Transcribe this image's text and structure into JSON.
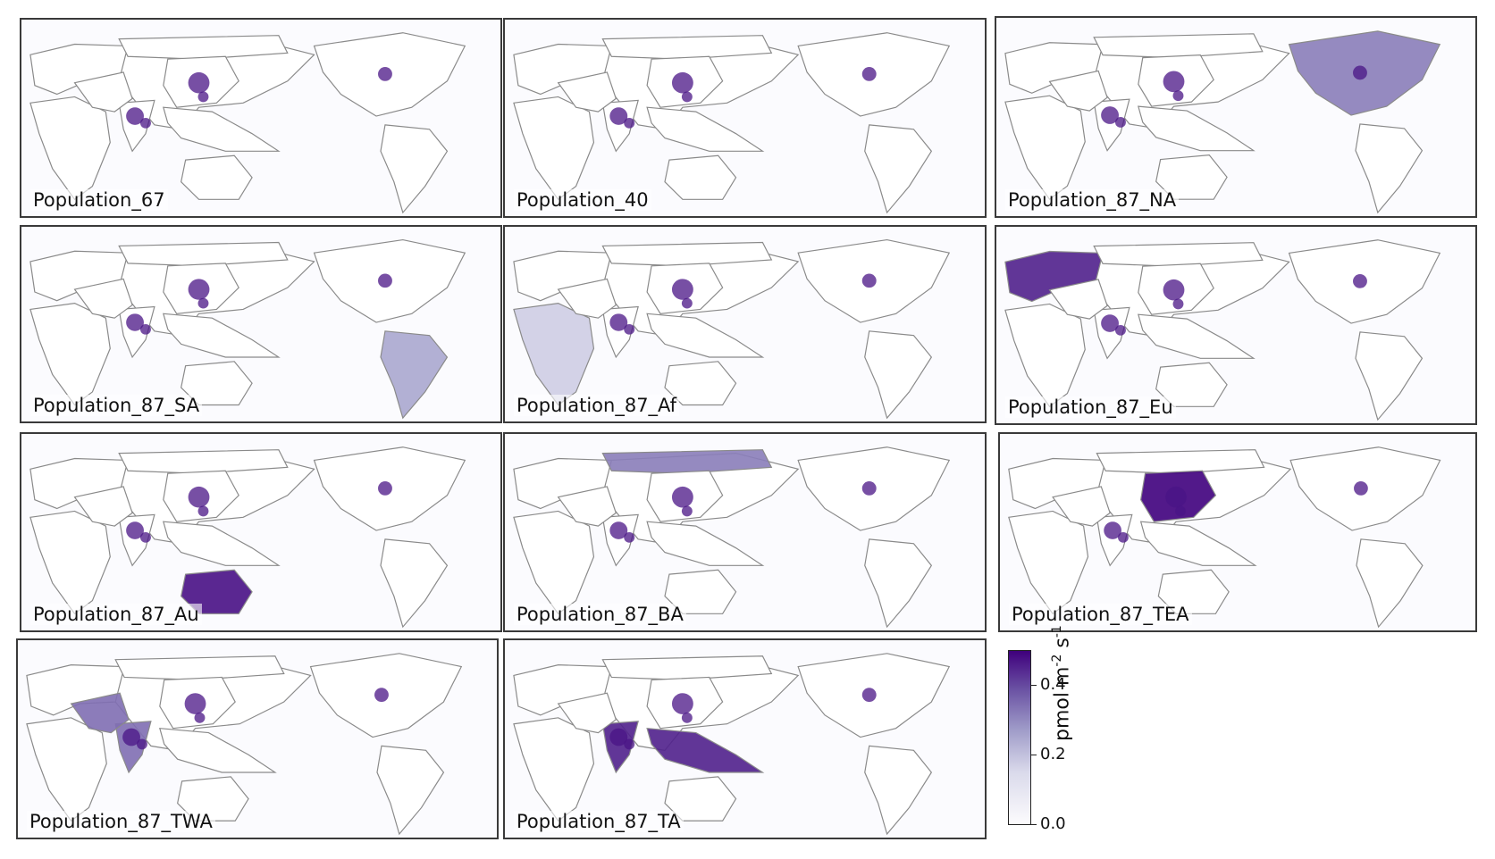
{
  "panels": [
    {
      "label": "Population_67",
      "highlight": "none",
      "tint": 0
    },
    {
      "label": "Population_40",
      "highlight": "none",
      "tint": 0
    },
    {
      "label": "Population_87_NA",
      "highlight": "north-america",
      "tint": 0.6
    },
    {
      "label": "Population_87_SA",
      "highlight": "south-america",
      "tint": 0.45
    },
    {
      "label": "Population_87_Af",
      "highlight": "africa",
      "tint": 0.3
    },
    {
      "label": "Population_87_Eu",
      "highlight": "europe",
      "tint": 0.9
    },
    {
      "label": "Population_87_Au",
      "highlight": "australia",
      "tint": 0.95
    },
    {
      "label": "Population_87_BA",
      "highlight": "boreal-asia",
      "tint": 0.6
    },
    {
      "label": "Population_87_TEA",
      "highlight": "temperate-east-asia",
      "tint": 1.0
    },
    {
      "label": "Population_87_TWA",
      "highlight": "temperate-west-asia",
      "tint": 0.65
    },
    {
      "label": "Population_87_TA",
      "highlight": "tropical-asia",
      "tint": 0.9
    }
  ],
  "colorbar": {
    "unit_base": "pmol m",
    "unit_exp1": "-2",
    "unit_mid": " s",
    "unit_exp2": "-1",
    "ticks": [
      "0.0",
      "0.2",
      "0.4"
    ],
    "tick_values": [
      0.0,
      0.2,
      0.4
    ],
    "max": 0.5,
    "colors": [
      "#fcfbfd",
      "#dadaeb",
      "#9e9ac8",
      "#6a51a3",
      "#3f007d"
    ]
  },
  "colors": {
    "land_outline": "#8a8a8a",
    "hotspot": "#4a1486",
    "ocean": "#fbfbfe"
  }
}
